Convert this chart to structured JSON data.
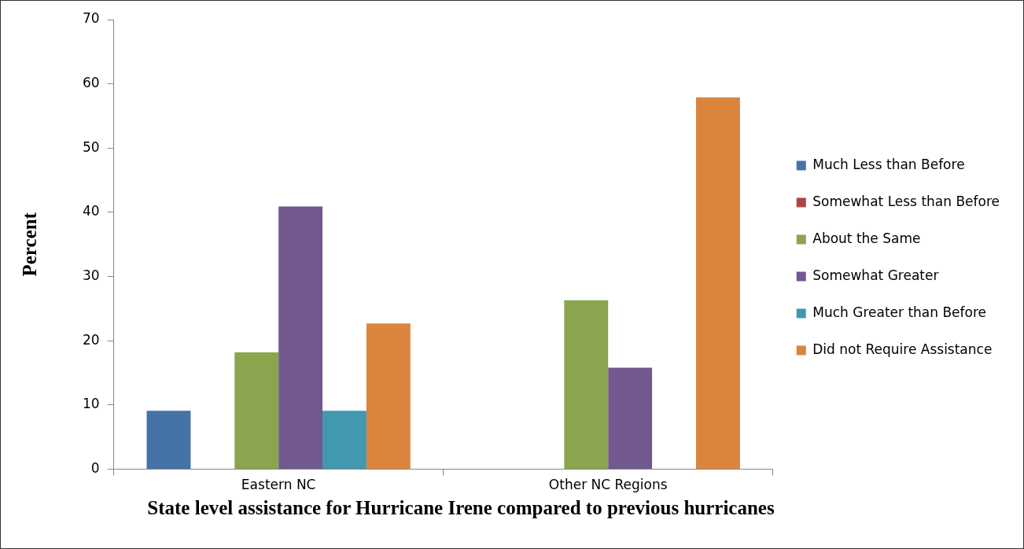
{
  "chart_data": {
    "type": "bar",
    "title": "State level assistance for Hurricane Irene compared to previous hurricanes",
    "ylabel": "Percent",
    "categories": [
      "Eastern NC",
      "Other NC Regions"
    ],
    "series": [
      {
        "name": "Much Less than Before",
        "color": "#4572a7",
        "values": [
          9.1,
          0
        ]
      },
      {
        "name": "Somewhat Less than Before",
        "color": "#aa4643",
        "values": [
          0,
          0
        ]
      },
      {
        "name": "About the Same",
        "color": "#89a54e",
        "values": [
          18.2,
          26.3
        ]
      },
      {
        "name": "Somewhat Greater",
        "color": "#71588f",
        "values": [
          40.9,
          15.8
        ]
      },
      {
        "name": "Much Greater than Before",
        "color": "#4198af",
        "values": [
          9.1,
          0
        ]
      },
      {
        "name": "Did not Require Assistance",
        "color": "#db843d",
        "values": [
          22.7,
          57.9
        ]
      }
    ],
    "ylim": [
      0,
      70
    ],
    "yticks": [
      0,
      10,
      20,
      30,
      40,
      50,
      60,
      70
    ],
    "grid": false,
    "legend": "right"
  }
}
